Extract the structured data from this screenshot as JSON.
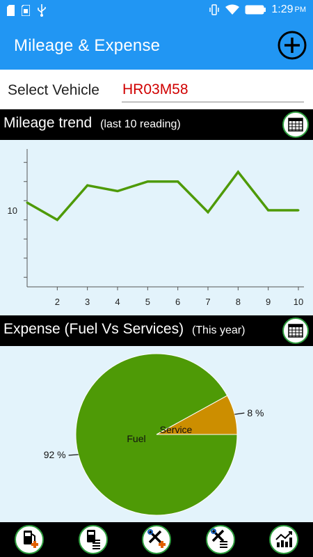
{
  "status_bar": {
    "time": "1:29",
    "ampm": "PM",
    "icons": [
      "sd-card-icon",
      "sim-card-icon",
      "usb-icon",
      "vibrate-icon",
      "wifi-icon",
      "battery-icon"
    ]
  },
  "app_bar": {
    "title": "Mileage & Expense",
    "add_icon": "add-circle-icon"
  },
  "vehicle": {
    "label": "Select Vehicle",
    "selected": "HR03M58"
  },
  "mileage_section": {
    "title": "Mileage trend",
    "subtitle": "(last 10 reading)",
    "calendar_icon": "calendar-icon"
  },
  "expense_section": {
    "title": "Expense (Fuel Vs Services)",
    "subtitle": "(This year)",
    "calendar_icon": "calendar-icon"
  },
  "colors": {
    "app_bar": "#2196f3",
    "chart_bg": "#e3f3fb",
    "line": "#4e9a06",
    "fuel": "#4e9a06",
    "service": "#cc8e00",
    "vehicle_value": "#d00000"
  },
  "chart_data": [
    {
      "type": "line",
      "x": [
        1,
        2,
        3,
        4,
        5,
        6,
        7,
        8,
        9,
        10
      ],
      "x_tick_labels": [
        "2",
        "3",
        "4",
        "5",
        "6",
        "7",
        "8",
        "9",
        "10"
      ],
      "y": [
        10.4,
        9.5,
        11.3,
        11.0,
        11.5,
        11.5,
        9.9,
        12.0,
        10.0,
        10.0
      ],
      "y_tick_labels": [
        "10"
      ],
      "ylim": [
        6.0,
        13.2
      ],
      "xlim": [
        1,
        10
      ],
      "grid": false,
      "legend": "none"
    },
    {
      "type": "pie",
      "slices": [
        {
          "label": "Fuel",
          "value": 92,
          "display": "92 %"
        },
        {
          "label": "Service",
          "value": 8,
          "display": "8 %"
        }
      ],
      "legend": "none"
    }
  ],
  "bottom_nav": [
    {
      "name": "add-fuel-button",
      "icon": "fuel-add-icon"
    },
    {
      "name": "fuel-log-button",
      "icon": "fuel-list-icon"
    },
    {
      "name": "add-service-button",
      "icon": "service-add-icon"
    },
    {
      "name": "service-log-button",
      "icon": "service-list-icon"
    },
    {
      "name": "reports-button",
      "icon": "trend-chart-icon"
    }
  ]
}
